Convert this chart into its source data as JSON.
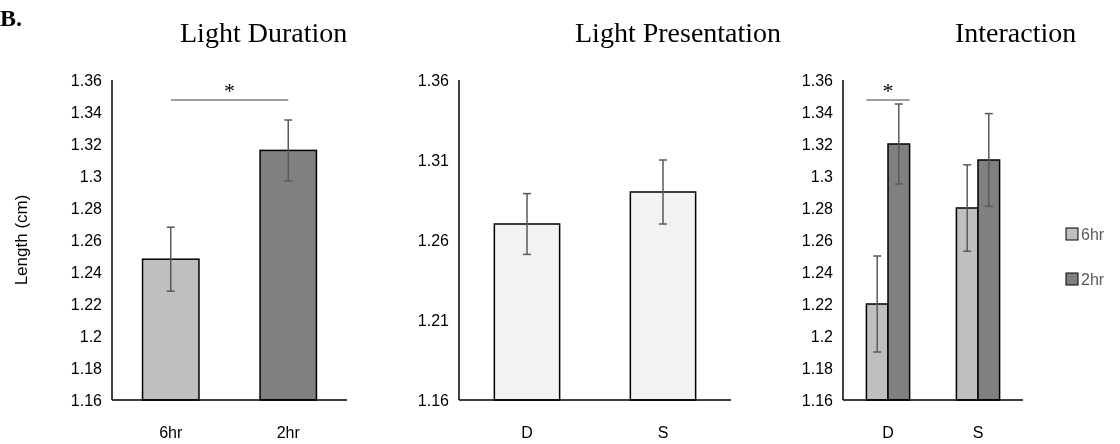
{
  "chart_data": [
    {
      "type": "bar",
      "title": "Light Duration",
      "ylabel": "Length (cm)",
      "categories": [
        "6hr",
        "2hr"
      ],
      "values": [
        1.248,
        1.316
      ],
      "colors": [
        "#bfbfbf",
        "#808080"
      ],
      "errors": [
        0.02,
        0.019
      ],
      "ylim": [
        1.16,
        1.36
      ],
      "yticks": [
        1.16,
        {
          "value": 1.18,
          "label": "1.18"
        },
        {
          "value": 1.2,
          "label": "1.2"
        },
        {
          "value": 1.22,
          "label": "1.22"
        },
        {
          "value": 1.24,
          "label": "1.24"
        },
        {
          "value": 1.26,
          "label": "1.26"
        },
        {
          "value": 1.28,
          "label": "1.28"
        },
        {
          "value": 1.3,
          "label": "1.3"
        },
        {
          "value": 1.32,
          "label": "1.32"
        },
        {
          "value": 1.34,
          "label": "1.34"
        },
        {
          "value": 1.36,
          "label": "1.36"
        }
      ],
      "annotations": [
        "B.",
        "*"
      ],
      "legend": false
    },
    {
      "type": "bar",
      "title": "Light Presentation",
      "categories": [
        "D",
        "S"
      ],
      "values": [
        1.27,
        1.29
      ],
      "colors": [
        "#f2f2f2",
        "#f2f2f2"
      ],
      "errors": [
        0.019,
        0.02
      ],
      "ylim": [
        1.16,
        1.36
      ],
      "yticks": [
        1.16,
        1.21,
        1.26,
        1.31,
        1.36
      ],
      "legend": false
    },
    {
      "type": "bar",
      "title": "Interaction",
      "categories": [
        "D",
        "S"
      ],
      "series": [
        {
          "name": "6hr",
          "color": "#bfbfbf",
          "values": [
            1.22,
            1.28
          ],
          "errors": [
            0.03,
            0.027
          ]
        },
        {
          "name": "2hr",
          "color": "#808080",
          "values": [
            1.32,
            1.31
          ],
          "errors": [
            0.025,
            0.029
          ]
        }
      ],
      "ylim": [
        1.16,
        1.36
      ],
      "yticks": [
        1.16,
        {
          "value": 1.18,
          "label": "1.18"
        },
        {
          "value": 1.2,
          "label": "1.2"
        },
        {
          "value": 1.22,
          "label": "1.22"
        },
        {
          "value": 1.24,
          "label": "1.24"
        },
        {
          "value": 1.26,
          "label": "1.26"
        },
        {
          "value": 1.28,
          "label": "1.28"
        },
        {
          "value": 1.3,
          "label": "1.3"
        },
        {
          "value": 1.32,
          "label": "1.32"
        },
        {
          "value": 1.34,
          "label": "1.34"
        },
        {
          "value": 1.36,
          "label": "1.36"
        }
      ],
      "annotations": [
        "*"
      ],
      "legend": "right"
    }
  ]
}
